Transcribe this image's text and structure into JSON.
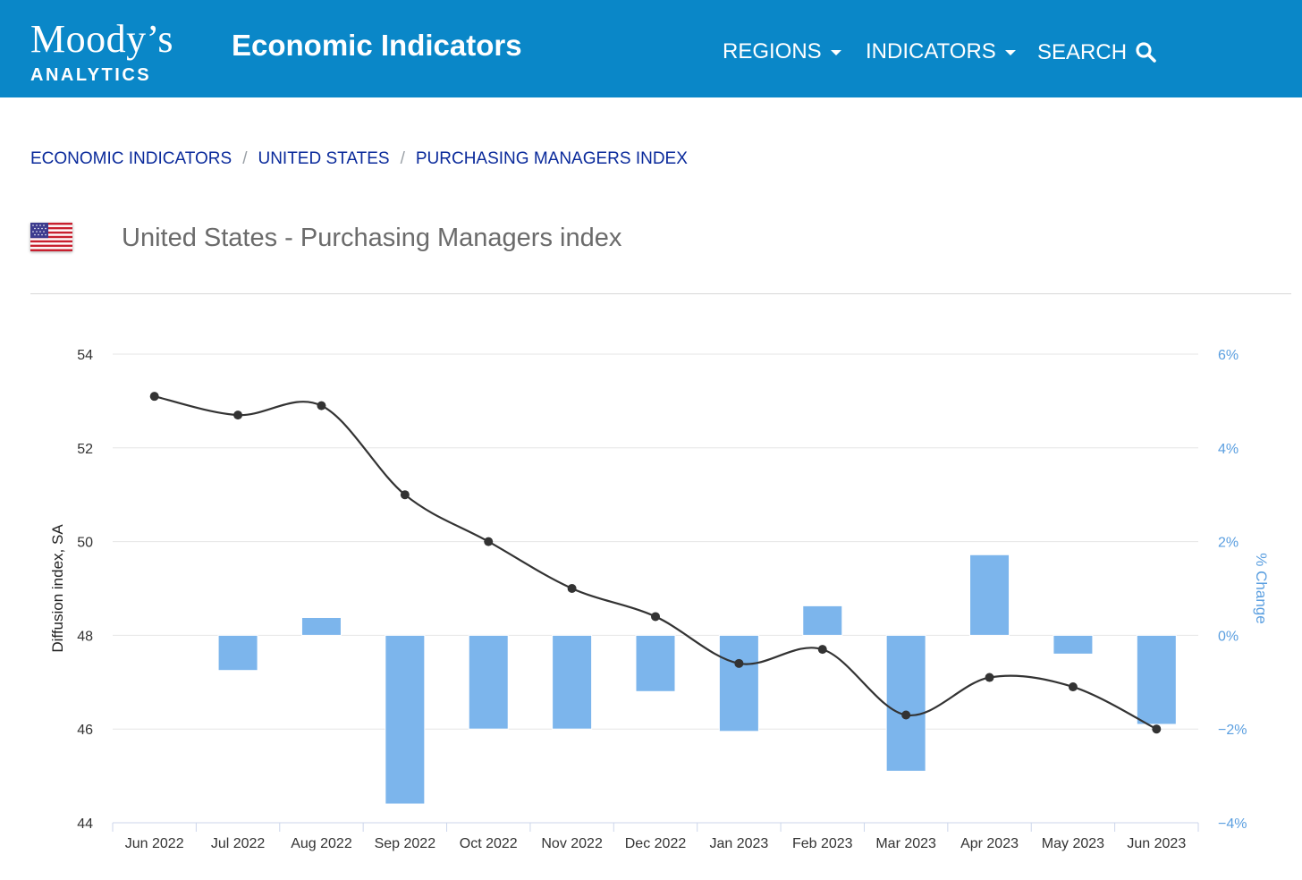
{
  "header": {
    "logo_main": "Moody’s",
    "logo_sub": "ANALYTICS",
    "site_title": "Economic Indicators",
    "nav": [
      "REGIONS",
      "INDICATORS",
      "SEARCH"
    ],
    "colors": {
      "bar": "#0a87c8"
    }
  },
  "breadcrumb": [
    "ECONOMIC INDICATORS",
    "UNITED STATES",
    "PURCHASING MANAGERS INDEX"
  ],
  "breadcrumb_separator": "/",
  "page_title": "United States - Purchasing Managers index",
  "chart_data": {
    "type": "bar",
    "title": "",
    "categories": [
      "Jun 2022",
      "Jul 2022",
      "Aug 2022",
      "Sep 2022",
      "Oct 2022",
      "Nov 2022",
      "Dec 2022",
      "Jan 2023",
      "Feb 2023",
      "Mar 2023",
      "Apr 2023",
      "May 2023",
      "Jun 2023"
    ],
    "series": [
      {
        "name": "Diffusion index, SA",
        "type": "line",
        "axis": "left",
        "color": "#333333",
        "values": [
          53.1,
          52.7,
          52.9,
          51.0,
          50.0,
          49.0,
          48.4,
          47.4,
          47.7,
          46.3,
          47.1,
          46.9,
          46.0
        ]
      },
      {
        "name": "% Change",
        "type": "bar",
        "axis": "right",
        "color": "#7cb5ec",
        "values": [
          null,
          -0.75,
          0.38,
          -3.6,
          -2.0,
          -2.0,
          -1.2,
          -2.05,
          0.63,
          -2.9,
          1.72,
          -0.4,
          -1.9
        ]
      }
    ],
    "ylabel": "Diffusion index, SA",
    "ylabel_right": "% Change",
    "ylim": [
      44,
      54
    ],
    "yticks": [
      44,
      46,
      48,
      50,
      52,
      54
    ],
    "ylim_right": [
      -4,
      6
    ],
    "yticks_right": [
      "−4%",
      "−2%",
      "0%",
      "2%",
      "4%",
      "6%"
    ],
    "grid": true
  }
}
